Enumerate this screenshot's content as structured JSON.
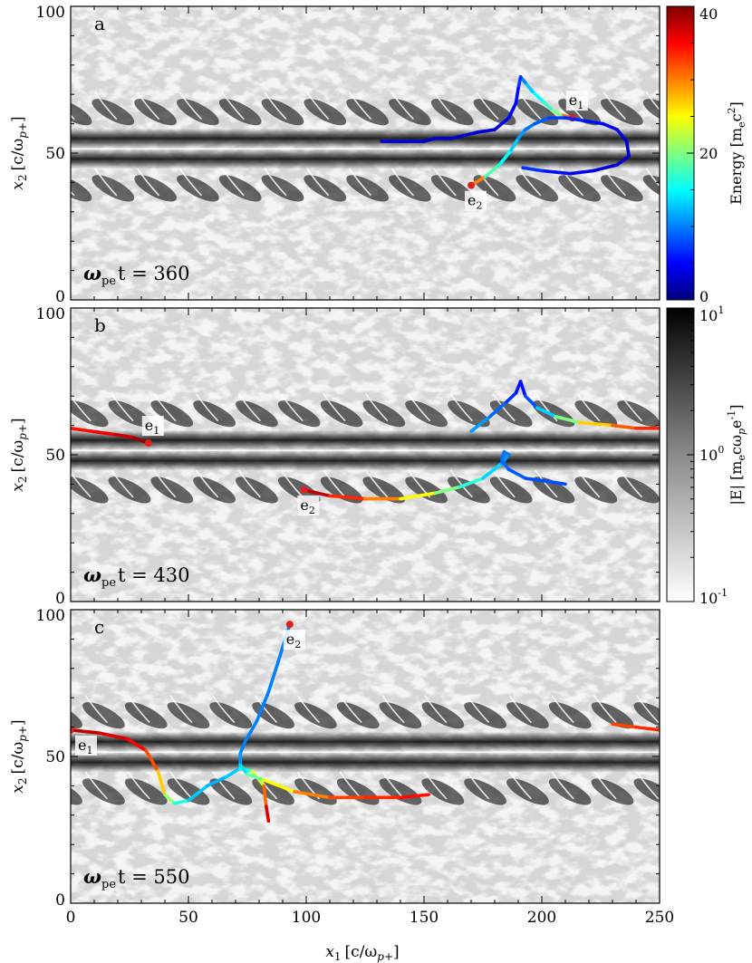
{
  "figure": {
    "xlabel_var": "x",
    "xlabel_sub": "1",
    "xlabel_unit": "[c/ω",
    "xlabel_unit_sub": "p+",
    "xlabel_close": "]",
    "ylabel_var": "x",
    "ylabel_sub": "2",
    "ylabel_unit": "[c/ω",
    "ylabel_unit_sub": "p+",
    "ylabel_close": "]",
    "x_ticks": [
      "0",
      "50",
      "100",
      "150",
      "200",
      "250"
    ],
    "y_ticks": [
      "0",
      "50",
      "100"
    ]
  },
  "chart_data": [
    {
      "type": "heatmap",
      "panel_label": "a",
      "time_label": "ω",
      "time_sub": "pe",
      "time_rest": "t = 360",
      "xlim": [
        0,
        250
      ],
      "ylim": [
        0,
        100
      ],
      "colorbar": {
        "label": "Energy [m",
        "label_sub": "e",
        "label_rest": "c",
        "label_sup": "2",
        "label_close": "]",
        "ticks": [
          "0",
          "20",
          "40"
        ],
        "range": [
          0,
          40
        ],
        "colormap": "jet"
      },
      "trajectories": [
        {
          "name": "e",
          "name_sub": "1",
          "points": [
            [
              213,
              62
            ],
            [
              208,
              63
            ],
            [
              204,
              65
            ],
            [
              200,
              68
            ],
            [
              196,
              71
            ],
            [
              193,
              74
            ],
            [
              191,
              76
            ],
            [
              190,
              72
            ],
            [
              189,
              67
            ],
            [
              186,
              62
            ],
            [
              180,
              58
            ],
            [
              172,
              57
            ],
            [
              162,
              55
            ],
            [
              155,
              55
            ],
            [
              150,
              54
            ],
            [
              140,
              54
            ],
            [
              132,
              54
            ]
          ],
          "energies": [
            40,
            22,
            18,
            16,
            14,
            12,
            8,
            6,
            5,
            5,
            4,
            3,
            3,
            3,
            3,
            3,
            3
          ]
        },
        {
          "name": "e",
          "name_sub": "2",
          "points": [
            [
              170,
              39
            ],
            [
              176,
              42
            ],
            [
              182,
              46
            ],
            [
              187,
              51
            ],
            [
              190,
              55
            ],
            [
              193,
              58
            ],
            [
              197,
              60
            ],
            [
              203,
              62
            ],
            [
              210,
              62
            ],
            [
              218,
              61
            ],
            [
              226,
              60
            ],
            [
              232,
              58
            ],
            [
              236,
              54
            ],
            [
              237,
              49
            ],
            [
              232,
              46
            ],
            [
              222,
              44
            ],
            [
              212,
              43
            ],
            [
              200,
              44
            ],
            [
              192,
              45
            ]
          ],
          "energies": [
            40,
            20,
            16,
            14,
            12,
            10,
            9,
            8,
            7,
            6,
            5,
            4,
            3,
            3,
            3,
            4,
            5,
            6,
            8
          ]
        }
      ]
    },
    {
      "type": "heatmap",
      "panel_label": "b",
      "time_label": "ω",
      "time_sub": "pe",
      "time_rest": "t = 430",
      "xlim": [
        0,
        250
      ],
      "ylim": [
        0,
        100
      ],
      "colorbar": {
        "label": "|E| [m",
        "label_sub": "e",
        "label_rest": "cω",
        "label_sub2": "p",
        "label_rest2": "e",
        "label_sup": "-1",
        "label_close": "]",
        "ticks": [
          "10",
          "10",
          "10"
        ],
        "tick_sups": [
          "-1",
          "0",
          "1"
        ],
        "scale": "log",
        "range": [
          0.1,
          10
        ],
        "colormap": "gray_r"
      },
      "trajectories": [
        {
          "name": "e",
          "name_sub": "1",
          "points": [
            [
              33,
              54
            ],
            [
              26,
              56
            ],
            [
              18,
              57
            ],
            [
              9,
              58
            ],
            [
              0,
              59
            ]
          ],
          "energies": [
            40,
            38,
            36,
            35,
            34
          ]
        },
        {
          "name": "e",
          "name_sub": "2",
          "points": [
            [
              99,
              38
            ],
            [
              110,
              36
            ],
            [
              125,
              35
            ],
            [
              140,
              35
            ],
            [
              155,
              37
            ],
            [
              165,
              39
            ],
            [
              175,
              42
            ],
            [
              183,
              47
            ],
            [
              186,
              50
            ],
            [
              184,
              51
            ],
            [
              183,
              48
            ],
            [
              186,
              45
            ],
            [
              193,
              42
            ],
            [
              202,
              41
            ],
            [
              210,
              40
            ]
          ],
          "energies": [
            40,
            35,
            32,
            28,
            22,
            18,
            15,
            12,
            10,
            10,
            9,
            9,
            8,
            8,
            8
          ]
        },
        {
          "name": "",
          "name_sub": "",
          "points": [
            [
              170,
              58
            ],
            [
              178,
              63
            ],
            [
              185,
              68
            ],
            [
              189,
              71
            ],
            [
              191,
              75
            ],
            [
              193,
              70
            ],
            [
              198,
              66
            ],
            [
              206,
              63
            ],
            [
              216,
              61
            ],
            [
              230,
              60
            ],
            [
              240,
              59
            ],
            [
              250,
              59
            ]
          ],
          "energies": [
            12,
            10,
            8,
            6,
            5,
            6,
            10,
            16,
            24,
            30,
            33,
            34
          ]
        }
      ]
    },
    {
      "type": "heatmap",
      "panel_label": "c",
      "time_label": "ω",
      "time_sub": "pe",
      "time_rest": "t = 550",
      "xlim": [
        0,
        250
      ],
      "ylim": [
        0,
        100
      ],
      "colorbar": null,
      "trajectories": [
        {
          "name": "e",
          "name_sub": "1",
          "points": [
            [
              0,
              59
            ],
            [
              12,
              58
            ],
            [
              24,
              56
            ],
            [
              32,
              52
            ],
            [
              37,
              45
            ],
            [
              40,
              37
            ],
            [
              44,
              34
            ],
            [
              50,
              35
            ],
            [
              58,
              40
            ],
            [
              66,
              43
            ],
            [
              72,
              46
            ],
            [
              77,
              45
            ],
            [
              82,
              40
            ],
            [
              83,
              33
            ],
            [
              84,
              28
            ]
          ],
          "energies": [
            38,
            37,
            36,
            34,
            30,
            24,
            18,
            14,
            12,
            12,
            14,
            18,
            28,
            34,
            38
          ]
        },
        {
          "name": "e",
          "name_sub": "2",
          "points": [
            [
              93,
              95
            ],
            [
              88,
              82
            ],
            [
              84,
              72
            ],
            [
              79,
              62
            ],
            [
              74,
              55
            ],
            [
              72,
              51
            ],
            [
              72,
              47
            ],
            [
              75,
              44
            ],
            [
              82,
              42
            ],
            [
              95,
              38
            ],
            [
              110,
              36
            ],
            [
              125,
              36
            ],
            [
              140,
              36
            ],
            [
              152,
              37
            ]
          ],
          "energies": [
            10,
            10,
            10,
            10,
            10,
            10,
            12,
            16,
            22,
            28,
            32,
            33,
            34,
            35
          ]
        },
        {
          "name": "",
          "name_sub": "",
          "points": [
            [
              230,
              61
            ],
            [
              240,
              60
            ],
            [
              250,
              59
            ]
          ],
          "energies": [
            32,
            33,
            34
          ]
        }
      ]
    }
  ]
}
